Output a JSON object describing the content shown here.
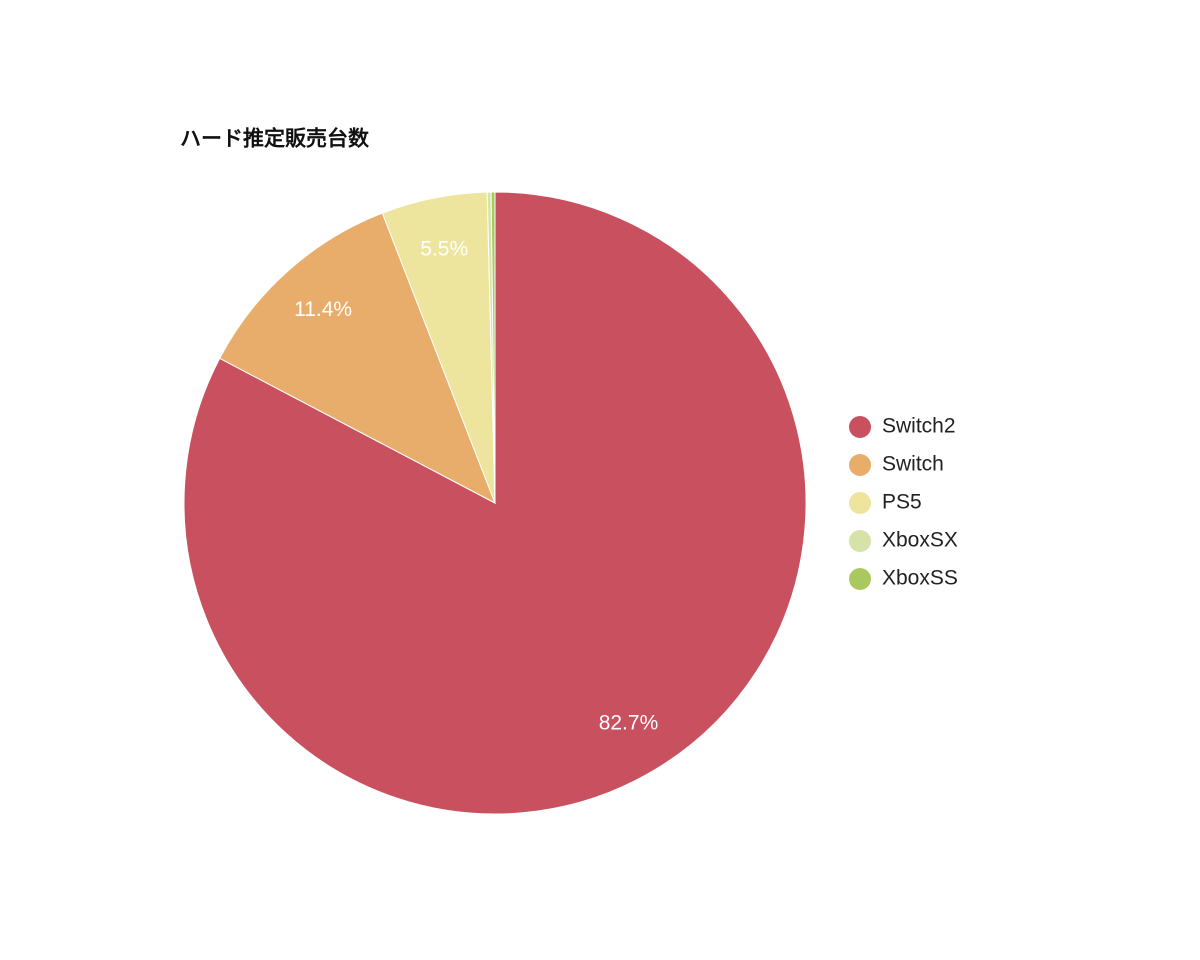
{
  "chart_data": {
    "type": "pie",
    "title": "ハード推定販売台数",
    "categories": [
      "Switch2",
      "Switch",
      "PS5",
      "XboxSX",
      "XboxSS"
    ],
    "values": [
      82.7,
      11.4,
      5.5,
      0.2,
      0.2
    ],
    "value_labels": [
      "82.7%",
      "11.4%",
      "5.5%",
      null,
      null
    ],
    "colors": [
      "#c9505f",
      "#e8ad6b",
      "#ede59d",
      "#d5e3a8",
      "#a9c95e"
    ],
    "legend": "right"
  }
}
